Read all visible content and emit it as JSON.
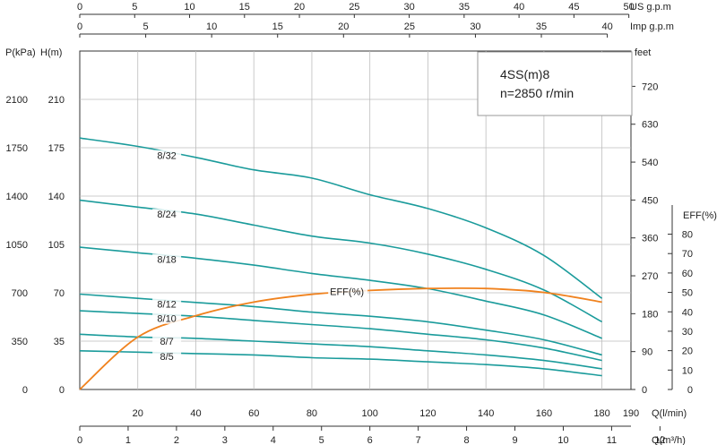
{
  "chart_data": {
    "type": "line",
    "title": "4SS(m)8",
    "subtitle": "n=2850 r/min",
    "xlabel": "Q(l/min)",
    "ylabel_left_outer": "P(kPa)",
    "ylabel_left_inner": "H(m)",
    "ylabel_right_feet": "feet",
    "ylabel_right_eff": "EFF(%)",
    "xlim": [
      0,
      190
    ],
    "ylim": [
      0,
      245
    ],
    "grid": true,
    "x_ticks": [
      20,
      40,
      60,
      80,
      100,
      120,
      140,
      160,
      180,
      190
    ],
    "y_ticks_H": [
      0,
      35,
      70,
      105,
      140,
      175,
      210
    ],
    "y_ticks_P": [
      0,
      350,
      700,
      1050,
      1400,
      1750,
      2100
    ],
    "y_ticks_feet": [
      0,
      90,
      180,
      270,
      360,
      450,
      540,
      630,
      720
    ],
    "y_ticks_eff": [
      0,
      10,
      20,
      30,
      40,
      50,
      60,
      70,
      80
    ],
    "top_axes": [
      {
        "label": "US  g.p.m",
        "max": 50,
        "ticks": [
          0,
          5,
          10,
          15,
          20,
          25,
          30,
          35,
          40,
          45,
          50
        ]
      },
      {
        "label": "Imp  g.p.m",
        "max": 40,
        "ticks": [
          0,
          5,
          10,
          15,
          20,
          25,
          30,
          35,
          40
        ]
      }
    ],
    "bottom_axis": {
      "label": "Q(m³/h)",
      "max": 12,
      "ticks": [
        0,
        1,
        2,
        3,
        4,
        5,
        6,
        7,
        8,
        9,
        10,
        11,
        12
      ]
    },
    "x": [
      0,
      20,
      40,
      60,
      80,
      100,
      120,
      140,
      160,
      180
    ],
    "series": [
      {
        "name": "8/32",
        "values": [
          182,
          176,
          168,
          159,
          153,
          141,
          131,
          117,
          97,
          66
        ],
        "label_at": 30
      },
      {
        "name": "8/24",
        "values": [
          137,
          132,
          127,
          119,
          111,
          106,
          98,
          87,
          72,
          49
        ],
        "label_at": 30
      },
      {
        "name": "8/18",
        "values": [
          103,
          99,
          95,
          90,
          84,
          79,
          73,
          64,
          54,
          37
        ],
        "label_at": 30
      },
      {
        "name": "8/12",
        "values": [
          69,
          66,
          63,
          60,
          56,
          53,
          49,
          43,
          36,
          25
        ],
        "label_at": 30
      },
      {
        "name": "8/10",
        "values": [
          57,
          55,
          53,
          50,
          47,
          44,
          40,
          36,
          30,
          21
        ],
        "label_at": 30
      },
      {
        "name": "8/7",
        "values": [
          40,
          38,
          37,
          35,
          33,
          31,
          28,
          25,
          21,
          15
        ],
        "label_at": 30
      },
      {
        "name": "8/5",
        "values": [
          28,
          27,
          26,
          25,
          23,
          22,
          20,
          18,
          15,
          10
        ],
        "label_at": 30
      }
    ],
    "efficiency": {
      "name": "EFF(%)",
      "x": [
        0,
        20,
        40,
        60,
        80,
        100,
        120,
        140,
        160,
        180
      ],
      "values": [
        0,
        27,
        38,
        45,
        49,
        51,
        52,
        52,
        50,
        45
      ],
      "label_at": 85
    },
    "colors": {
      "pump_curves": "#1a9b9b",
      "efficiency": "#f0821e",
      "grid": "#bdbdbd",
      "axis": "#333333"
    }
  }
}
